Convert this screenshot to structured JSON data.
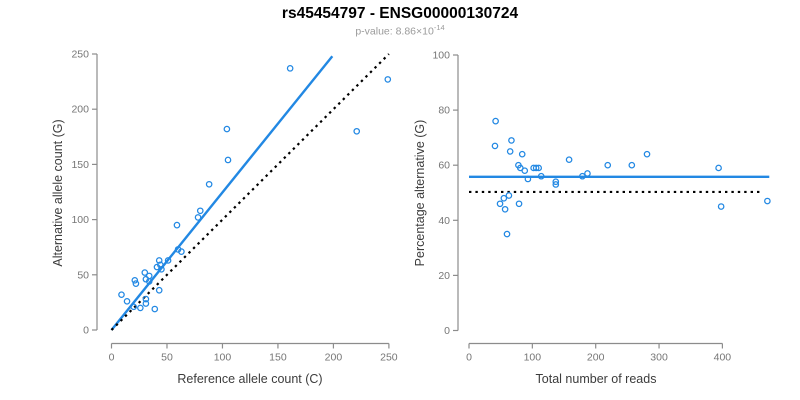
{
  "title": "rs45454797 - ENSG00000130724",
  "subtitle": {
    "prefix": "p-value: 8.86×10",
    "exponent": "-14"
  },
  "colors": {
    "accent": "#2288E3",
    "identity": "#000000",
    "axis": "#8c8c8c",
    "tick_label": "#767676",
    "axis_title": "#3c3c3c",
    "subtitle": "#9b9b9b",
    "title": "#000000",
    "background": "#ffffff"
  },
  "chart_data": [
    {
      "type": "scatter",
      "name": "allele-counts-scatter",
      "title": "",
      "xlabel": "Reference allele count (C)",
      "ylabel": "Alternative allele count (G)",
      "xlim": [
        0,
        250
      ],
      "ylim": [
        0,
        250
      ],
      "xticks": [
        0,
        50,
        100,
        150,
        200,
        250
      ],
      "yticks": [
        0,
        50,
        100,
        150,
        200,
        250
      ],
      "grid": false,
      "legend": null,
      "points": [
        [
          9,
          32
        ],
        [
          14,
          26
        ],
        [
          20,
          21
        ],
        [
          21,
          45
        ],
        [
          22,
          42
        ],
        [
          26,
          20
        ],
        [
          30,
          52
        ],
        [
          31,
          46
        ],
        [
          31,
          28
        ],
        [
          31,
          24
        ],
        [
          34,
          49
        ],
        [
          34,
          44
        ],
        [
          39,
          19
        ],
        [
          41,
          57
        ],
        [
          43,
          63
        ],
        [
          43,
          36
        ],
        [
          44,
          59
        ],
        [
          45,
          55
        ],
        [
          51,
          63
        ],
        [
          59,
          95
        ],
        [
          60,
          73
        ],
        [
          63,
          71
        ],
        [
          78,
          102
        ],
        [
          80,
          108
        ],
        [
          88,
          132
        ],
        [
          104,
          182
        ],
        [
          105,
          154
        ],
        [
          161,
          237
        ],
        [
          221,
          180
        ],
        [
          249,
          227
        ]
      ],
      "lines": [
        {
          "name": "regression-line",
          "style": "solid",
          "color": "#2288E3",
          "width": 2.4,
          "from": [
            0,
            0
          ],
          "to": [
            199,
            248
          ]
        },
        {
          "name": "identity-line",
          "style": "dotted",
          "color": "#000000",
          "width": 2.2,
          "from": [
            0,
            0
          ],
          "to": [
            250,
            250
          ]
        }
      ]
    },
    {
      "type": "scatter",
      "name": "percentage-vs-reads-scatter",
      "title": "",
      "xlabel": "Total number of reads",
      "ylabel": "Percentage alternative (G)",
      "xlim": [
        0,
        475
      ],
      "ylim": [
        0,
        100
      ],
      "xticks": [
        0,
        100,
        200,
        300,
        400
      ],
      "yticks": [
        0,
        20,
        40,
        60,
        80,
        100
      ],
      "grid": false,
      "legend": null,
      "points": [
        [
          42,
          76
        ],
        [
          41,
          67
        ],
        [
          49,
          46
        ],
        [
          55,
          48
        ],
        [
          57,
          44
        ],
        [
          60,
          35
        ],
        [
          63,
          49
        ],
        [
          65,
          65
        ],
        [
          67,
          69
        ],
        [
          79,
          46
        ],
        [
          78,
          60
        ],
        [
          81,
          59
        ],
        [
          84,
          64
        ],
        [
          88,
          58
        ],
        [
          93,
          55
        ],
        [
          102,
          59
        ],
        [
          106,
          59
        ],
        [
          110,
          59
        ],
        [
          114,
          56
        ],
        [
          137,
          54
        ],
        [
          137,
          53
        ],
        [
          158,
          62
        ],
        [
          179,
          56
        ],
        [
          187,
          57
        ],
        [
          219,
          60
        ],
        [
          257,
          60
        ],
        [
          281,
          64
        ],
        [
          394,
          59
        ],
        [
          398,
          45
        ],
        [
          471,
          47
        ]
      ],
      "lines": [
        {
          "name": "mean-percentage-line",
          "style": "solid",
          "color": "#2288E3",
          "width": 2.4,
          "from": [
            0,
            55.8
          ],
          "to": [
            474,
            55.8
          ]
        },
        {
          "name": "expected-50-line",
          "style": "dotted",
          "color": "#000000",
          "width": 2.2,
          "from": [
            0,
            50.3
          ],
          "to": [
            463,
            50.3
          ]
        }
      ]
    }
  ]
}
